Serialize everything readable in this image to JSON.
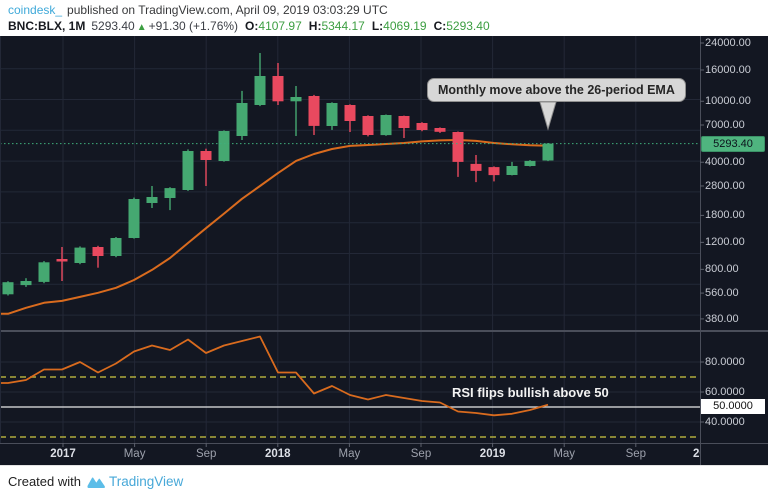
{
  "header": {
    "byline": {
      "author": "coindesk_",
      "text": "published on TradingView.com, April 09, 2019 03:03:29 UTC"
    },
    "quote": {
      "symbol": "BNC:BLX, 1M",
      "last": "5293.40",
      "direction_icon": "▲",
      "change": "+91.30 (+1.76%)",
      "ohlc": [
        {
          "label": "O:",
          "value": "4107.97"
        },
        {
          "label": "H:",
          "value": "5344.17"
        },
        {
          "label": "L:",
          "value": "4069.19"
        },
        {
          "label": "C:",
          "value": "5293.40"
        }
      ]
    }
  },
  "annotations": {
    "ema_callout": "Monthly move above the 26-period EMA",
    "rsi_note": "RSI flips bullish above 50"
  },
  "price_axis": {
    "labels": [
      "24000.00",
      "16000.00",
      "10000.00",
      "7000.00",
      "4000.00",
      "2800.00",
      "1800.00",
      "1200.00",
      "800.00",
      "560.00",
      "380.00"
    ],
    "last_price_label": "5293.40"
  },
  "rsi_axis": {
    "labels": [
      "80.0000",
      "60.0000",
      "40.0000"
    ],
    "mid_label": "50.0000"
  },
  "time_axis": [
    {
      "label": "2017",
      "major": true
    },
    {
      "label": "May",
      "major": false
    },
    {
      "label": "Sep",
      "major": false
    },
    {
      "label": "2018",
      "major": true
    },
    {
      "label": "May",
      "major": false
    },
    {
      "label": "Sep",
      "major": false
    },
    {
      "label": "2019",
      "major": true
    },
    {
      "label": "May",
      "major": false
    },
    {
      "label": "Sep",
      "major": false
    },
    {
      "label": "20",
      "major": true,
      "clipped": true
    }
  ],
  "footer": {
    "created_with": "Created with",
    "brand": "TradingView"
  },
  "colors": {
    "background": "#131722",
    "grid": "#232837",
    "border": "#4a4e5a",
    "up": "#45a871",
    "down": "#e9495f",
    "ema": "#d96b1e",
    "rsi": "#d96b1e",
    "last_price_line": "#3fae7c",
    "last_price_bg": "#4fb47f",
    "band": "#b0ab3c",
    "rsi_mid_line": "#e8e8e8",
    "tick": "#5c606c",
    "callout_bg": "#d7d7d7",
    "callout_border": "#8f8f8f",
    "header_value_green": "#3c9e41",
    "brand_blue": "#3fa9d9",
    "tradingview_blue": "#47a8d8"
  },
  "chart_data": [
    {
      "type": "candlestick",
      "name": "BNC:BLX 1M (Bitcoin Liquid Index, monthly)",
      "y_scale": "log",
      "categories": [
        "Oct 2016",
        "Nov 2016",
        "Dec 2016",
        "Jan 2017",
        "Feb 2017",
        "Mar 2017",
        "Apr 2017",
        "May 2017",
        "Jun 2017",
        "Jul 2017",
        "Aug 2017",
        "Sep 2017",
        "Oct 2017",
        "Nov 2017",
        "Dec 2017",
        "Jan 2018",
        "Feb 2018",
        "Mar 2018",
        "Apr 2018",
        "May 2018",
        "Jun 2018",
        "Jul 2018",
        "Aug 2018",
        "Sep 2018",
        "Oct 2018",
        "Nov 2018",
        "Dec 2018",
        "Jan 2019",
        "Feb 2019",
        "Mar 2019",
        "Apr 2019"
      ],
      "candles_ohlc": [
        [
          550,
          670,
          540,
          660
        ],
        [
          632,
          700,
          615,
          672
        ],
        [
          662,
          905,
          650,
          889
        ],
        [
          935,
          1120,
          672,
          900
        ],
        [
          881,
          1130,
          865,
          1110
        ],
        [
          1120,
          1140,
          820,
          978
        ],
        [
          978,
          1300,
          960,
          1282
        ],
        [
          1282,
          2350,
          1270,
          2304
        ],
        [
          2168,
          2800,
          2010,
          2374
        ],
        [
          2339,
          2750,
          1950,
          2713
        ],
        [
          2637,
          4850,
          2600,
          4735
        ],
        [
          4735,
          4900,
          2800,
          4138
        ],
        [
          4077,
          6450,
          4030,
          6396
        ],
        [
          5934,
          11690,
          5590,
          9743
        ],
        [
          9454,
          20650,
          9300,
          14615
        ],
        [
          14615,
          17770,
          9450,
          10000
        ],
        [
          10000,
          12580,
          5930,
          10660
        ],
        [
          10820,
          11000,
          6020,
          6900
        ],
        [
          6895,
          9850,
          6500,
          9740
        ],
        [
          9450,
          9550,
          6300,
          7430
        ],
        [
          8010,
          8100,
          5900,
          6020
        ],
        [
          6020,
          8200,
          5950,
          8140
        ],
        [
          8010,
          8060,
          5760,
          6690
        ],
        [
          7210,
          7300,
          6380,
          6490
        ],
        [
          6690,
          6750,
          6220,
          6320
        ],
        [
          6300,
          6350,
          3210,
          4020
        ],
        [
          3900,
          4460,
          2970,
          3510
        ],
        [
          3720,
          3760,
          3000,
          3300
        ],
        [
          3300,
          4020,
          3280,
          3780
        ],
        [
          3780,
          4130,
          3750,
          4080
        ],
        [
          4107.97,
          5344.17,
          4069.19,
          5293.4
        ]
      ],
      "ema26": [
        410,
        449,
        484,
        498,
        529,
        562,
        606,
        682,
        793,
        949,
        1189,
        1485,
        1850,
        2310,
        2800,
        3400,
        4080,
        4530,
        4880,
        5110,
        5180,
        5260,
        5340,
        5470,
        5550,
        5590,
        5510,
        5340,
        5240,
        5160,
        5130
      ],
      "last_price": 5293.4,
      "y_axis_ticks": [
        24000,
        16000,
        10000,
        7000,
        4000,
        2800,
        1800,
        1200,
        800,
        560,
        380
      ],
      "legend_visible": false
    },
    {
      "type": "line",
      "name": "RSI",
      "values": [
        66,
        68,
        75,
        75,
        80,
        73,
        79,
        87,
        91,
        88,
        95,
        86,
        91,
        94,
        97,
        73,
        73,
        59,
        64,
        58,
        55,
        58,
        56,
        54,
        53,
        47,
        46,
        44.5,
        45.5,
        48,
        51.5
      ],
      "bands": {
        "upper": 70,
        "mid": 50,
        "lower": 30
      },
      "ylim": [
        26,
        100
      ],
      "y_axis_ticks": [
        80,
        60,
        50,
        40
      ],
      "annotation": "RSI flips bullish above 50"
    }
  ]
}
